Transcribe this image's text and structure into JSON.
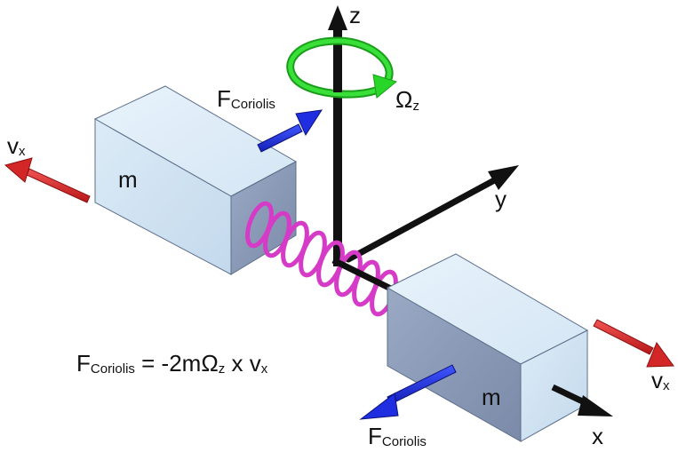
{
  "axes": {
    "z": "z",
    "y": "y",
    "x": "x"
  },
  "rotation": {
    "symbol": "Ω",
    "subscript": "z"
  },
  "masses": {
    "left": "m",
    "right": "m"
  },
  "forces": {
    "coriolis_symbol": "F",
    "coriolis_subscript": "Coriolis",
    "velocity_symbol": "v",
    "velocity_subscript": "x"
  },
  "equation": {
    "lhs_symbol": "F",
    "lhs_subscript": "Coriolis",
    "middle": " = -2mΩ",
    "omega_subscript": "z",
    "times": " x v",
    "v_subscript": "x"
  },
  "colors": {
    "block_front": "#cfe3f2",
    "block_top": "#dcecf8",
    "block_side": "#8a9bb8",
    "spring": "#d53bc6",
    "coriolis_arrow": "#1f2ee0",
    "velocity_arrow": "#d32727",
    "rotation_arrow": "#27d627",
    "axis": "#111111"
  }
}
